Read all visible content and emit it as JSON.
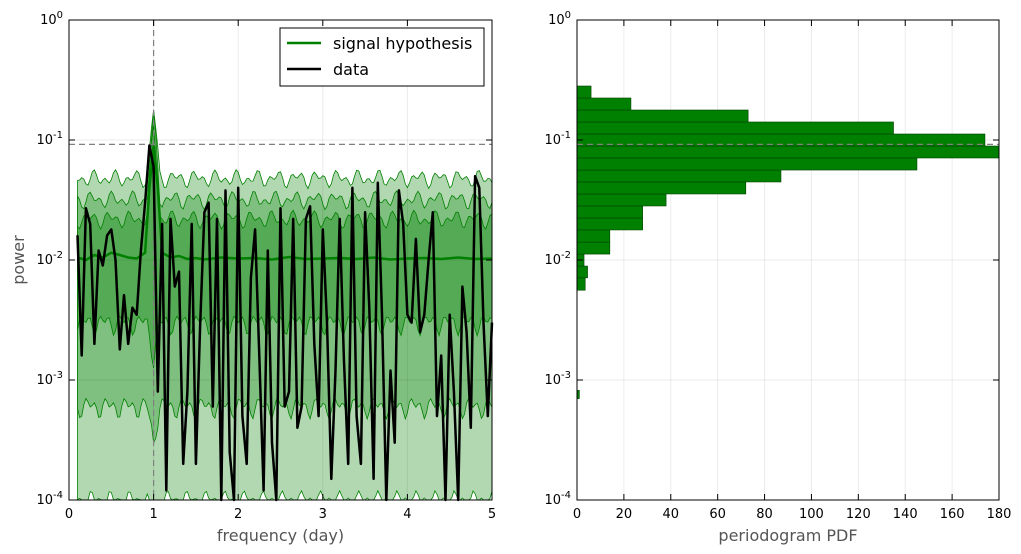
{
  "chart_data": [
    {
      "type": "line",
      "xlabel": "frequency (day)",
      "ylabel": "power",
      "xlim": [
        0,
        5
      ],
      "ylim": [
        0.0001,
        1
      ],
      "yscale": "log",
      "grid": true,
      "xticks": [
        "0",
        "1",
        "2",
        "3",
        "4",
        "5"
      ],
      "yticks": [
        {
          "base": "10",
          "exp": "-4"
        },
        {
          "base": "10",
          "exp": "-3"
        },
        {
          "base": "10",
          "exp": "-2"
        },
        {
          "base": "10",
          "exp": "-1"
        },
        {
          "base": "10",
          "exp": "0"
        }
      ],
      "legend": {
        "position": "top-right",
        "entries": [
          {
            "label": "signal hypothesis",
            "color": "#008000"
          },
          {
            "label": "data",
            "color": "#000000"
          }
        ]
      },
      "threshold_power": 0.092,
      "vline_frequency": 1.0,
      "colors": {
        "band_light": "#b2d8b2",
        "band_mid": "#7fbf7f",
        "band_dark": "#55aa55",
        "edge": "#008000",
        "data": "#000000",
        "dash": "#808080"
      },
      "series": [
        {
          "name": "data",
          "x": [
            0.1,
            0.15,
            0.2,
            0.25,
            0.3,
            0.35,
            0.4,
            0.45,
            0.5,
            0.55,
            0.6,
            0.65,
            0.7,
            0.75,
            0.8,
            0.85,
            0.9,
            0.95,
            1.0,
            1.05,
            1.1,
            1.15,
            1.2,
            1.25,
            1.3,
            1.35,
            1.4,
            1.45,
            1.5,
            1.55,
            1.6,
            1.65,
            1.7,
            1.75,
            1.8,
            1.85,
            1.9,
            1.95,
            2.0,
            2.05,
            2.1,
            2.15,
            2.2,
            2.25,
            2.3,
            2.35,
            2.4,
            2.45,
            2.5,
            2.55,
            2.6,
            2.65,
            2.7,
            2.75,
            2.8,
            2.85,
            2.9,
            2.95,
            3.0,
            3.05,
            3.1,
            3.15,
            3.2,
            3.25,
            3.3,
            3.35,
            3.4,
            3.45,
            3.5,
            3.55,
            3.6,
            3.65,
            3.7,
            3.75,
            3.8,
            3.85,
            3.9,
            3.95,
            4.0,
            4.05,
            4.1,
            4.15,
            4.2,
            4.25,
            4.3,
            4.35,
            4.4,
            4.45,
            4.5,
            4.55,
            4.6,
            4.65,
            4.7,
            4.75,
            4.8,
            4.85,
            4.9,
            4.95,
            5.0
          ],
          "y": [
            0.016,
            0.0016,
            0.027,
            0.02,
            0.002,
            0.012,
            0.009,
            0.016,
            0.018,
            0.01,
            0.0018,
            0.0051,
            0.002,
            0.004,
            0.0035,
            0.012,
            0.03,
            0.09,
            0.06,
            0.0008,
            0.02,
            0.00012,
            0.022,
            0.006,
            0.008,
            0.0002,
            0.0008,
            0.02,
            0.0002,
            0.0028,
            0.025,
            0.03,
            0.0006,
            0.022,
            0.0001,
            0.038,
            0.00025,
            0.0001,
            0.04,
            0.0005,
            0.0002,
            0.0071,
            0.018,
            0.0015,
            0.00012,
            0.012,
            0.0003,
            0.0001,
            0.027,
            0.0006,
            0.0008,
            0.022,
            0.0004,
            0.0006,
            0.022,
            0.028,
            0.002,
            0.0005,
            0.018,
            0.003,
            0.00015,
            0.0012,
            0.022,
            0.0015,
            0.0002,
            0.04,
            0.0005,
            0.0002,
            0.025,
            0.004,
            0.00015,
            0.044,
            0.0035,
            0.0001,
            0.0012,
            0.0003,
            0.038,
            0.02,
            0.0035,
            0.003,
            0.015,
            0.0025,
            0.0035,
            0.01,
            0.025,
            0.0005,
            0.0016,
            0.0001,
            0.0035,
            0.0008,
            0.0001,
            0.006,
            0.0025,
            0.0004,
            0.05,
            0.04,
            0.003,
            0.0005,
            0.003
          ]
        },
        {
          "name": "signal hypothesis",
          "x": [
            0.1,
            0.2,
            0.3,
            0.4,
            0.5,
            0.6,
            0.7,
            0.8,
            0.9,
            0.95,
            1.0,
            1.05,
            1.1,
            1.2,
            1.3,
            1.4,
            1.5,
            1.6,
            1.8,
            2.0,
            2.2,
            2.4,
            2.6,
            2.8,
            3.0,
            3.2,
            3.4,
            3.6,
            3.8,
            4.0,
            4.2,
            4.4,
            4.6,
            4.8,
            5.0
          ],
          "y": [
            0.0105,
            0.01,
            0.011,
            0.0105,
            0.0115,
            0.011,
            0.0105,
            0.0103,
            0.0115,
            0.04,
            0.09,
            0.04,
            0.0115,
            0.0105,
            0.0108,
            0.0102,
            0.0104,
            0.0101,
            0.0105,
            0.0103,
            0.0104,
            0.0101,
            0.0106,
            0.0102,
            0.0103,
            0.0104,
            0.0102,
            0.0105,
            0.0101,
            0.0103,
            0.0104,
            0.0102,
            0.0105,
            0.0102,
            0.0103
          ]
        }
      ],
      "bands": [
        {
          "lower": 0.0001,
          "upper": 0.048,
          "peak_upper": 0.18
        },
        {
          "lower": 0.0006,
          "upper": 0.032,
          "peak_upper": 0.15
        },
        {
          "lower": 0.003,
          "upper": 0.022,
          "peak_upper": 0.13
        }
      ]
    },
    {
      "type": "bar",
      "orientation": "horizontal",
      "xlabel": "periodogram PDF",
      "xlim": [
        0,
        180
      ],
      "ylim": [
        0.0001,
        1
      ],
      "yscale": "log",
      "grid": true,
      "xticks": [
        "0",
        "20",
        "40",
        "60",
        "80",
        "100",
        "120",
        "140",
        "160",
        "180"
      ],
      "yticks": [
        {
          "base": "10",
          "exp": "-4"
        },
        {
          "base": "10",
          "exp": "-3"
        },
        {
          "base": "10",
          "exp": "-2"
        },
        {
          "base": "10",
          "exp": "-1"
        },
        {
          "base": "10",
          "exp": "0"
        }
      ],
      "threshold_power": 0.092,
      "bar_color": "#008000",
      "bins": [
        {
          "low": 0.0007,
          "high": 0.00082,
          "value": 1
        },
        {
          "low": 0.0056,
          "high": 0.0071,
          "value": 3.5
        },
        {
          "low": 0.0071,
          "high": 0.0089,
          "value": 4.5
        },
        {
          "low": 0.0089,
          "high": 0.0112,
          "value": 3
        },
        {
          "low": 0.0112,
          "high": 0.0141,
          "value": 14
        },
        {
          "low": 0.0141,
          "high": 0.0178,
          "value": 14
        },
        {
          "low": 0.0178,
          "high": 0.0224,
          "value": 28
        },
        {
          "low": 0.0224,
          "high": 0.0282,
          "value": 28
        },
        {
          "low": 0.0282,
          "high": 0.0355,
          "value": 38
        },
        {
          "low": 0.0355,
          "high": 0.0447,
          "value": 72
        },
        {
          "low": 0.0447,
          "high": 0.0562,
          "value": 87
        },
        {
          "low": 0.0562,
          "high": 0.0708,
          "value": 145
        },
        {
          "low": 0.0708,
          "high": 0.0891,
          "value": 180
        },
        {
          "low": 0.0891,
          "high": 0.1122,
          "value": 174
        },
        {
          "low": 0.1122,
          "high": 0.1413,
          "value": 135
        },
        {
          "low": 0.1413,
          "high": 0.1778,
          "value": 73
        },
        {
          "low": 0.1778,
          "high": 0.2239,
          "value": 23
        },
        {
          "low": 0.2239,
          "high": 0.2818,
          "value": 6
        }
      ]
    }
  ]
}
